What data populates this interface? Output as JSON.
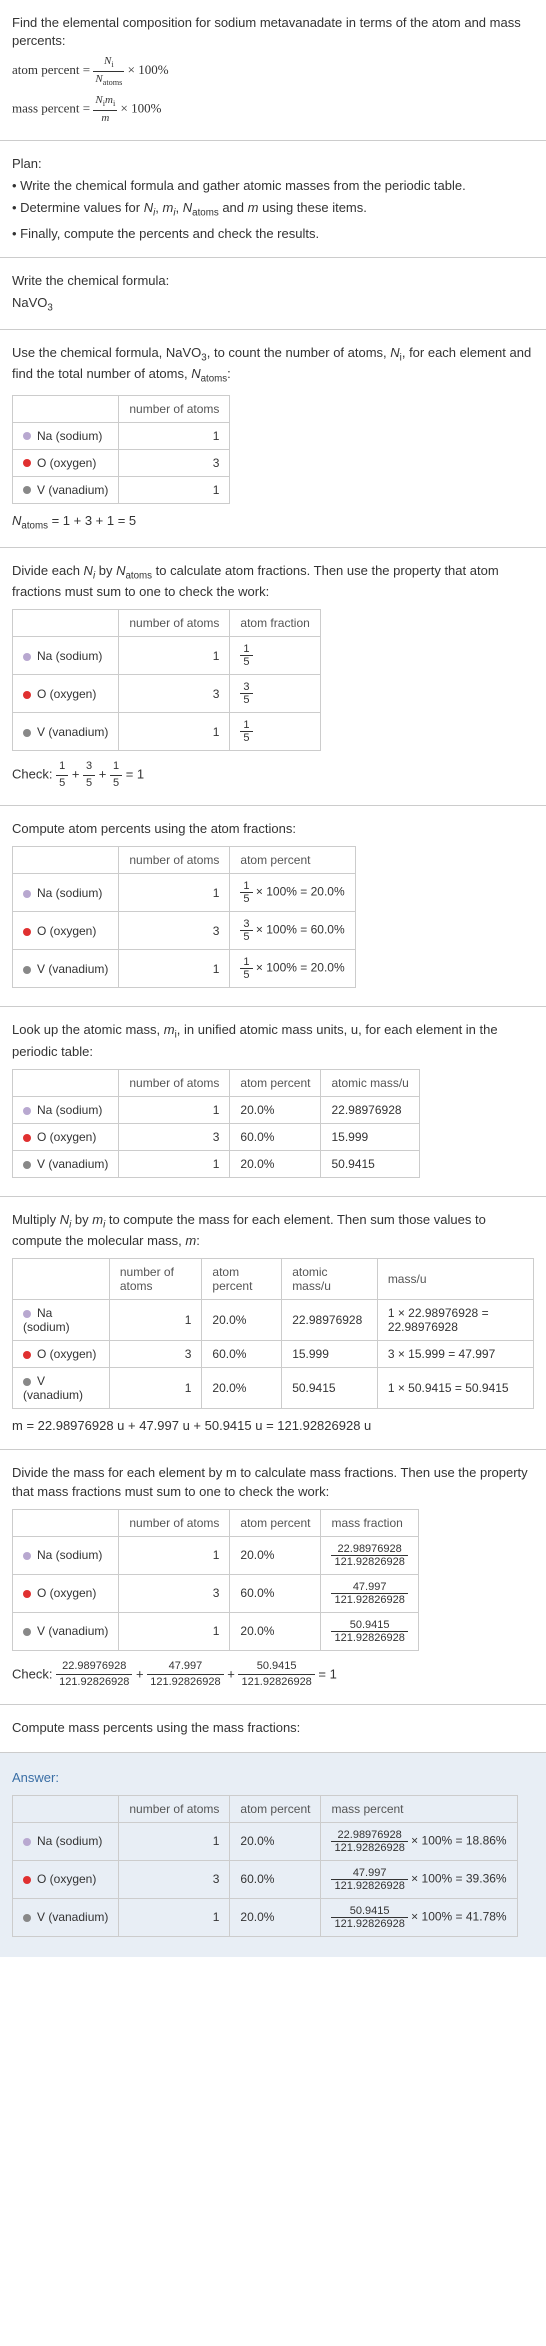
{
  "intro": {
    "title": "Find the elemental composition for sodium metavanadate in terms of the atom and mass percents:",
    "atom_percent_label": "atom percent = ",
    "atom_percent_times": " × 100%",
    "mass_percent_label": "mass percent = ",
    "mass_percent_times": " × 100%",
    "frac_ni": "N",
    "frac_ni_sub": "i",
    "frac_natoms": "N",
    "frac_natoms_sub": "atoms",
    "frac_nimi": "N",
    "frac_nimi_sub": "i",
    "frac_mi": "m",
    "frac_mi_sub": "i",
    "frac_m": "m"
  },
  "plan": {
    "heading": "Plan:",
    "line1": "• Write the chemical formula and gather atomic masses from the periodic table.",
    "line2_a": "• Determine values for ",
    "line2_b": " using these items.",
    "line3": "• Finally, compute the percents and check the results.",
    "vars": "N_i, m_i, N_atoms and m"
  },
  "formula_section": {
    "label": "Write the chemical formula:",
    "formula": "NaVO",
    "formula_sub": "3"
  },
  "count_section": {
    "intro_a": "Use the chemical formula, NaVO",
    "intro_sub": "3",
    "intro_b": ", to count the number of atoms, ",
    "intro_c": ", for each element and find the total number of atoms, ",
    "intro_d": ":",
    "ni": "N",
    "ni_sub": "i",
    "natoms": "N",
    "natoms_sub": "atoms",
    "col_atoms": "number of atoms",
    "na_label": "Na (sodium)",
    "na_n": "1",
    "o_label": "O (oxygen)",
    "o_n": "3",
    "v_label": "V (vanadium)",
    "v_n": "1",
    "sum": " = 1 + 3 + 1 = 5"
  },
  "atomfrac_section": {
    "intro_a": "Divide each ",
    "intro_b": " by ",
    "intro_c": " to calculate atom fractions. Then use the property that atom fractions must sum to one to check the work:",
    "col_atoms": "number of atoms",
    "col_frac": "atom fraction",
    "na_n": "1",
    "na_f_n": "1",
    "na_f_d": "5",
    "o_n": "3",
    "o_f_n": "3",
    "o_f_d": "5",
    "v_n": "1",
    "v_f_n": "1",
    "v_f_d": "5",
    "check_label": "Check: ",
    "check_eq": " = 1",
    "f1n": "1",
    "f1d": "5",
    "f2n": "3",
    "f2d": "5",
    "f3n": "1",
    "f3d": "5"
  },
  "atompct_section": {
    "intro": "Compute atom percents using the atom fractions:",
    "col_atoms": "number of atoms",
    "col_pct": "atom percent",
    "na_n": "1",
    "na_fn": "1",
    "na_fd": "5",
    "na_pct": " × 100% = 20.0%",
    "o_n": "3",
    "o_fn": "3",
    "o_fd": "5",
    "o_pct": " × 100% = 60.0%",
    "v_n": "1",
    "v_fn": "1",
    "v_fd": "5",
    "v_pct": " × 100% = 20.0%"
  },
  "mass_lookup": {
    "intro_a": "Look up the atomic mass, ",
    "intro_b": ", in unified atomic mass units, u, for each element in the periodic table:",
    "mi": "m",
    "mi_sub": "i",
    "col_atoms": "number of atoms",
    "col_pct": "atom percent",
    "col_mass": "atomic mass/u",
    "na_n": "1",
    "na_p": "20.0%",
    "na_m": "22.98976928",
    "o_n": "3",
    "o_p": "60.0%",
    "o_m": "15.999",
    "v_n": "1",
    "v_p": "20.0%",
    "v_m": "50.9415"
  },
  "mass_calc": {
    "intro_a": "Multiply ",
    "intro_b": " by ",
    "intro_c": " to compute the mass for each element. Then sum those values to compute the molecular mass, ",
    "intro_d": ":",
    "col_atoms": "number of atoms",
    "col_pct": "atom percent",
    "col_amass": "atomic mass/u",
    "col_mass": "mass/u",
    "na_n": "1",
    "na_p": "20.0%",
    "na_am": "22.98976928",
    "na_mass": "1 × 22.98976928 = 22.98976928",
    "o_n": "3",
    "o_p": "60.0%",
    "o_am": "15.999",
    "o_mass": "3 × 15.999 = 47.997",
    "v_n": "1",
    "v_p": "20.0%",
    "v_am": "50.9415",
    "v_mass": "1 × 50.9415 = 50.9415",
    "sum": "m = 22.98976928 u + 47.997 u + 50.9415 u = 121.92826928 u"
  },
  "massfrac_section": {
    "intro": "Divide the mass for each element by m to calculate mass fractions. Then use the property that mass fractions must sum to one to check the work:",
    "col_atoms": "number of atoms",
    "col_pct": "atom percent",
    "col_mfrac": "mass fraction",
    "na_n": "1",
    "na_p": "20.0%",
    "na_fn": "22.98976928",
    "na_fd": "121.92826928",
    "o_n": "3",
    "o_p": "60.0%",
    "o_fn": "47.997",
    "o_fd": "121.92826928",
    "v_n": "1",
    "v_p": "20.0%",
    "v_fn": "50.9415",
    "v_fd": "121.92826928",
    "check_label": "Check: ",
    "c1n": "22.98976928",
    "c1d": "121.92826928",
    "c2n": "47.997",
    "c2d": "121.92826928",
    "c3n": "50.9415",
    "c3d": "121.92826928",
    "check_eq": " = 1"
  },
  "masspct_section": {
    "intro": "Compute mass percents using the mass fractions:"
  },
  "answer": {
    "label": "Answer:",
    "col_atoms": "number of atoms",
    "col_apct": "atom percent",
    "col_mpct": "mass percent",
    "na_n": "1",
    "na_ap": "20.0%",
    "na_fn": "22.98976928",
    "na_fd": "121.92826928",
    "na_mp": "× 100% = 18.86%",
    "o_n": "3",
    "o_ap": "60.0%",
    "o_fn": "47.997",
    "o_fd": "121.92826928",
    "o_mp": "× 100% = 39.36%",
    "v_n": "1",
    "v_ap": "20.0%",
    "v_fn": "50.9415",
    "v_fd": "121.92826928",
    "v_mp": "× 100% = 41.78%"
  },
  "elements": {
    "na": "Na (sodium)",
    "o": "O (oxygen)",
    "v": "V (vanadium)"
  }
}
